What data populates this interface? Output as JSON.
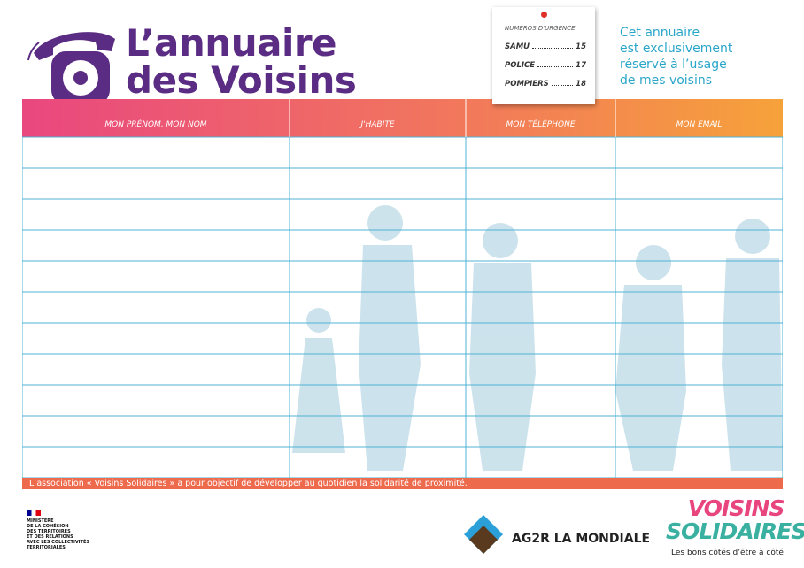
{
  "header": {
    "title": [
      "L’annuaire",
      "des Voisins"
    ]
  },
  "emergency": {
    "title": "NUMÉROS D'URGENCE",
    "items": [
      {
        "label": "SAMU",
        "number": "15"
      },
      {
        "label": "POLICE",
        "number": "17"
      },
      {
        "label": "POMPIERS",
        "number": "18"
      }
    ]
  },
  "note": [
    "Cet annuaire",
    "est exclusivement",
    "réservé à l’usage",
    "de mes voisins"
  ],
  "table": {
    "headers": [
      "MON PRÉNOM, MON NOM",
      "J'HABITE",
      "MON TÉLÉPHONE",
      "MON EMAIL"
    ]
  },
  "footer": {
    "mission": "L’association « Voisins Solidaires » a pour objectif de développer au quotidien la solidarité de proximité.",
    "ministry": [
      "MINISTÈRE",
      "DE LA COHÉSION",
      "DES TERRITOIRES",
      "ET DES RELATIONS",
      "AVEC LES COLLECTIVITÉS",
      "TERRITORIALES"
    ],
    "sponsor": "AG2R LA MONDIALE",
    "brand": [
      "VOISINS",
      "SOLIDAIRES"
    ],
    "tagline": "Les bons côtés d’être à côté"
  }
}
